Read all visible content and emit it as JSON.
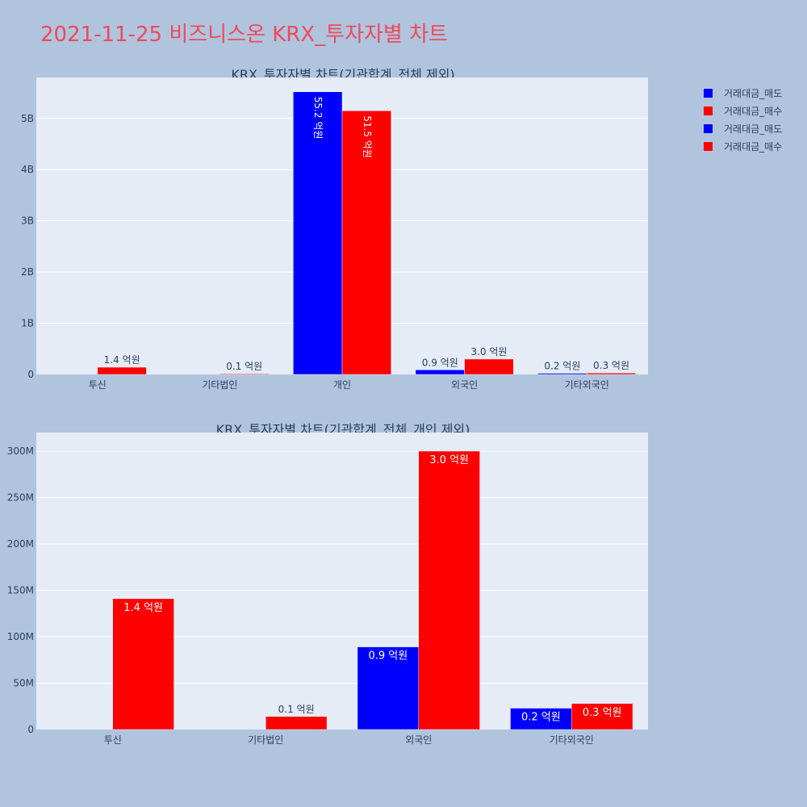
{
  "title": "2021-11-25 비즈니스온 KRX_투자자별 차트",
  "colors": {
    "sell": "#0000ff",
    "buy": "#ff0000"
  },
  "legend": [
    {
      "label": "거래대금_매도",
      "color": "#0000ff"
    },
    {
      "label": "거래대금_매수",
      "color": "#ff0000"
    },
    {
      "label": "거래대금_매도",
      "color": "#0000ff"
    },
    {
      "label": "거래대금_매수",
      "color": "#ff0000"
    }
  ],
  "chart_data": [
    {
      "type": "bar",
      "title": "KRX_투자자별 차트(기관합계_전체 제외)",
      "categories": [
        "투신",
        "기타법인",
        "개인",
        "외국인",
        "기타외국인"
      ],
      "ylim": [
        0,
        5800000000
      ],
      "yticks": [
        0,
        1000000000,
        2000000000,
        3000000000,
        4000000000,
        5000000000
      ],
      "ytick_labels": [
        "0",
        "1B",
        "2B",
        "3B",
        "4B",
        "5B"
      ],
      "series": [
        {
          "name": "거래대금_매도",
          "color": "#0000ff",
          "values": [
            0,
            0,
            5520000000,
            90000000,
            23000000
          ],
          "labels": [
            "",
            "",
            "55.2 억원",
            "0.9 억원",
            "0.2 억원"
          ]
        },
        {
          "name": "거래대금_매수",
          "color": "#ff0000",
          "values": [
            141000000,
            14000000,
            5150000000,
            300000000,
            28000000
          ],
          "labels": [
            "1.4 억원",
            "0.1 억원",
            "51.5 억원",
            "3.0 억원",
            "0.3 억원"
          ]
        }
      ]
    },
    {
      "type": "bar",
      "title": "KRX_투자자별 차트(기관합계_전체_개인 제외)",
      "categories": [
        "투신",
        "기타법인",
        "외국인",
        "기타외국인"
      ],
      "ylim": [
        0,
        320000000
      ],
      "yticks": [
        0,
        50000000,
        100000000,
        150000000,
        200000000,
        250000000,
        300000000
      ],
      "ytick_labels": [
        "0",
        "50M",
        "100M",
        "150M",
        "200M",
        "250M",
        "300M"
      ],
      "series": [
        {
          "name": "거래대금_매도",
          "color": "#0000ff",
          "values": [
            0,
            0,
            89000000,
            23000000
          ],
          "labels": [
            "",
            "",
            "0.9 억원",
            "0.2 억원"
          ]
        },
        {
          "name": "거래대금_매수",
          "color": "#ff0000",
          "values": [
            141000000,
            14000000,
            300000000,
            28000000
          ],
          "labels": [
            "1.4 억원",
            "0.1 억원",
            "3.0 억원",
            "0.3 억원"
          ]
        }
      ]
    }
  ]
}
